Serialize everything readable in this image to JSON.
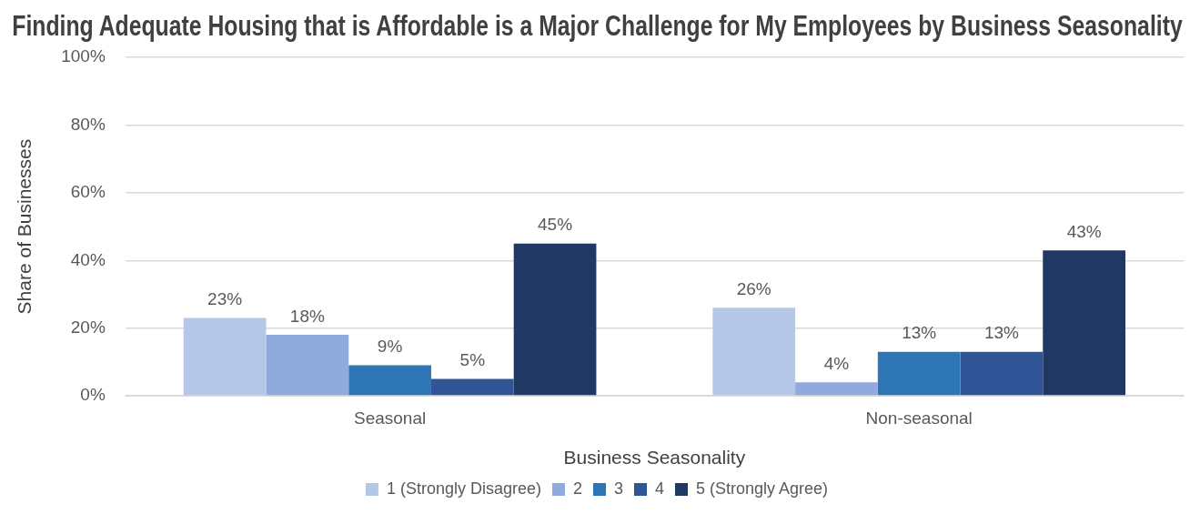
{
  "chart_data": {
    "type": "bar",
    "title": "Finding Adequate Housing that is Affordable is a Major Challenge for My Employees by Business Seasonality",
    "xlabel": "Business Seasonality",
    "ylabel": "Share of Businesses",
    "categories": [
      "Seasonal",
      "Non-seasonal"
    ],
    "series": [
      {
        "name": "1 (Strongly Disagree)",
        "color": "#b4c7e7",
        "values": [
          23,
          26
        ],
        "value_labels": [
          "23%",
          "26%"
        ]
      },
      {
        "name": "2",
        "color": "#8faadc",
        "values": [
          18,
          4
        ],
        "value_labels": [
          "18%",
          "4%"
        ]
      },
      {
        "name": "3",
        "color": "#2e75b6",
        "values": [
          9,
          13
        ],
        "value_labels": [
          "9%",
          "13%"
        ]
      },
      {
        "name": "4",
        "color": "#2f5597",
        "values": [
          5,
          13
        ],
        "value_labels": [
          "5%",
          "13%"
        ]
      },
      {
        "name": "5 (Strongly Agree)",
        "color": "#203864",
        "values": [
          45,
          43
        ],
        "value_labels": [
          "45%",
          "43%"
        ]
      }
    ],
    "ylim": [
      0,
      100
    ],
    "yticks": [
      {
        "value": 0,
        "label": "0%"
      },
      {
        "value": 20,
        "label": "20%"
      },
      {
        "value": 40,
        "label": "40%"
      },
      {
        "value": 60,
        "label": "60%"
      },
      {
        "value": 80,
        "label": "80%"
      },
      {
        "value": 100,
        "label": "100%"
      }
    ],
    "grid": "y",
    "legend": "bottom"
  }
}
